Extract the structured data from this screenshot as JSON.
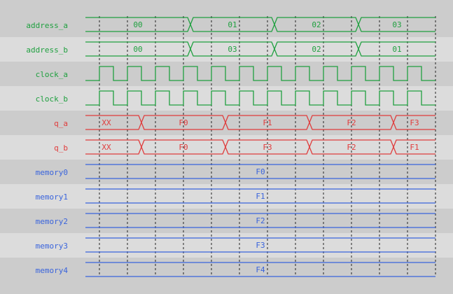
{
  "colors": {
    "bg_dark": "#cccccc",
    "bg_light": "#dcdcdc",
    "digital": "#20a040",
    "data": "#e03c3c",
    "memory": "#3a64dc",
    "grid": "#222222"
  },
  "signals": [
    {
      "name": "address_a",
      "kind": "bus",
      "color": "digital",
      "values": [
        "00",
        "01",
        "02",
        "03"
      ],
      "transitions": [
        3.25,
        6.25,
        9.25
      ]
    },
    {
      "name": "address_b",
      "kind": "bus",
      "color": "digital",
      "values": [
        "00",
        "03",
        "02",
        "01"
      ],
      "transitions": [
        3.25,
        6.25,
        9.25
      ]
    },
    {
      "name": "clock_a",
      "kind": "clock",
      "color": "digital"
    },
    {
      "name": "clock_b",
      "kind": "clock",
      "color": "digital"
    },
    {
      "name": "q_a",
      "kind": "bus",
      "color": "data",
      "values": [
        "XX",
        "F0",
        "F1",
        "F2",
        "F3"
      ],
      "transitions": [
        1.5,
        4.5,
        7.5,
        10.5
      ]
    },
    {
      "name": "q_b",
      "kind": "bus",
      "color": "data",
      "values": [
        "XX",
        "F0",
        "F3",
        "F2",
        "F1"
      ],
      "transitions": [
        1.5,
        4.5,
        7.5,
        10.5
      ]
    },
    {
      "name": "memory0",
      "kind": "bus",
      "color": "memory",
      "values": [
        "F0"
      ],
      "transitions": []
    },
    {
      "name": "memory1",
      "kind": "bus",
      "color": "memory",
      "values": [
        "F1"
      ],
      "transitions": []
    },
    {
      "name": "memory2",
      "kind": "bus",
      "color": "memory",
      "values": [
        "F2"
      ],
      "transitions": []
    },
    {
      "name": "memory3",
      "kind": "bus",
      "color": "memory",
      "values": [
        "F3"
      ],
      "transitions": []
    },
    {
      "name": "memory4",
      "kind": "bus",
      "color": "memory",
      "values": [
        "F4"
      ],
      "transitions": []
    }
  ],
  "clock_cycles": 12
}
